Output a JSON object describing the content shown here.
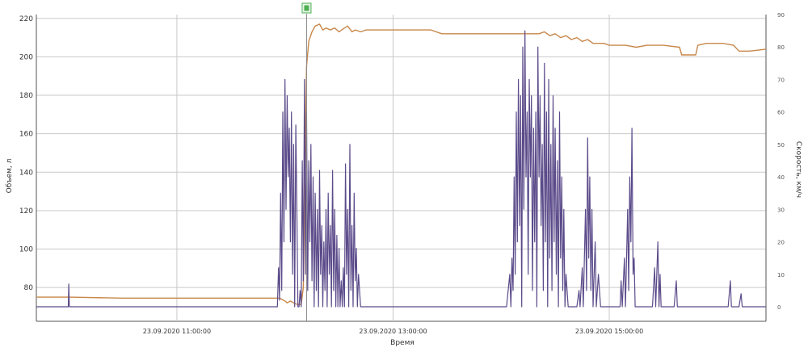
{
  "chart_data": {
    "type": "line",
    "xlabel": "Время",
    "ylabel_left": "Объем, л",
    "ylabel_right": "Скорость, км/ч",
    "x_ticks": [
      {
        "label": "23.09.2020 11:00:00",
        "hour": 11.0
      },
      {
        "label": "23.09.2020 13:00:00",
        "hour": 13.0
      },
      {
        "label": "23.09.2020 15:00:00",
        "hour": 15.0
      }
    ],
    "x_range_hours": [
      9.7,
      16.45
    ],
    "y_left": {
      "min": 70,
      "max": 222,
      "ticks": [
        80,
        100,
        120,
        140,
        160,
        180,
        200,
        220
      ]
    },
    "y_right": {
      "min": 0,
      "max": 90,
      "ticks": [
        0,
        10,
        20,
        30,
        40,
        50,
        60,
        70,
        80,
        90
      ]
    },
    "gridlines": true,
    "marker": {
      "name": "refuel-marker",
      "hour": 12.2,
      "color": "#4caf50"
    },
    "colors": {
      "volume": "#c8874a",
      "speed": "#5b4b8a",
      "grid": "#c9c9c9",
      "axis": "#555555"
    },
    "series": [
      {
        "axis": "left",
        "points": [
          [
            9.7,
            75
          ],
          [
            10.0,
            75
          ],
          [
            10.5,
            74.5
          ],
          [
            11.0,
            74.5
          ],
          [
            11.5,
            74.5
          ],
          [
            11.95,
            74.5
          ],
          [
            12.0,
            73
          ],
          [
            12.02,
            72
          ],
          [
            12.05,
            73
          ],
          [
            12.08,
            72
          ],
          [
            12.1,
            71.5
          ],
          [
            12.13,
            71
          ],
          [
            12.15,
            71.5
          ],
          [
            12.17,
            80
          ],
          [
            12.18,
            120
          ],
          [
            12.19,
            160
          ],
          [
            12.2,
            195
          ],
          [
            12.22,
            208
          ],
          [
            12.25,
            213
          ],
          [
            12.28,
            216
          ],
          [
            12.32,
            217
          ],
          [
            12.35,
            214
          ],
          [
            12.38,
            215
          ],
          [
            12.42,
            214
          ],
          [
            12.46,
            215
          ],
          [
            12.5,
            213
          ],
          [
            12.55,
            215
          ],
          [
            12.58,
            216
          ],
          [
            12.62,
            213
          ],
          [
            12.65,
            214
          ],
          [
            12.7,
            213
          ],
          [
            12.75,
            214
          ],
          [
            12.8,
            214
          ],
          [
            12.9,
            214
          ],
          [
            13.0,
            214
          ],
          [
            13.2,
            214
          ],
          [
            13.35,
            214
          ],
          [
            13.45,
            212
          ],
          [
            13.8,
            212
          ],
          [
            14.2,
            212
          ],
          [
            14.35,
            212
          ],
          [
            14.4,
            213
          ],
          [
            14.45,
            211
          ],
          [
            14.5,
            212
          ],
          [
            14.55,
            210
          ],
          [
            14.6,
            211
          ],
          [
            14.65,
            209
          ],
          [
            14.7,
            210
          ],
          [
            14.75,
            208
          ],
          [
            14.8,
            209
          ],
          [
            14.85,
            207
          ],
          [
            14.95,
            207
          ],
          [
            15.0,
            206
          ],
          [
            15.15,
            206
          ],
          [
            15.25,
            205
          ],
          [
            15.35,
            206
          ],
          [
            15.5,
            206
          ],
          [
            15.65,
            205
          ],
          [
            15.67,
            201
          ],
          [
            15.8,
            201
          ],
          [
            15.82,
            206
          ],
          [
            15.9,
            207
          ],
          [
            16.05,
            207
          ],
          [
            16.15,
            206
          ],
          [
            16.2,
            203
          ],
          [
            16.3,
            203
          ],
          [
            16.45,
            204
          ],
          [
            16.6,
            204
          ],
          [
            16.8,
            204
          ],
          [
            16.95,
            205
          ],
          [
            17.1,
            205
          ],
          [
            17.2,
            206
          ],
          [
            17.4,
            206
          ]
        ]
      },
      {
        "axis": "right",
        "points": [
          [
            9.7,
            0
          ],
          [
            9.995,
            0
          ],
          [
            10.0,
            7
          ],
          [
            10.005,
            0
          ],
          [
            11.7,
            0
          ],
          [
            11.9,
            0
          ],
          [
            11.93,
            0
          ],
          [
            11.94,
            12
          ],
          [
            11.95,
            2
          ],
          [
            11.96,
            35
          ],
          [
            11.97,
            5
          ],
          [
            11.98,
            60
          ],
          [
            11.99,
            20
          ],
          [
            12.0,
            70
          ],
          [
            12.01,
            30
          ],
          [
            12.02,
            65
          ],
          [
            12.03,
            40
          ],
          [
            12.04,
            55
          ],
          [
            12.05,
            20
          ],
          [
            12.06,
            60
          ],
          [
            12.07,
            10
          ],
          [
            12.08,
            50
          ],
          [
            12.09,
            0
          ],
          [
            12.1,
            56
          ],
          [
            12.11,
            30
          ],
          [
            12.12,
            0
          ],
          [
            12.13,
            0
          ],
          [
            12.14,
            5
          ],
          [
            12.15,
            0
          ],
          [
            12.16,
            45
          ],
          [
            12.17,
            8
          ],
          [
            12.18,
            70
          ],
          [
            12.19,
            10
          ],
          [
            12.2,
            60
          ],
          [
            12.21,
            5
          ],
          [
            12.22,
            45
          ],
          [
            12.23,
            20
          ],
          [
            12.24,
            50
          ],
          [
            12.25,
            8
          ],
          [
            12.26,
            40
          ],
          [
            12.27,
            0
          ],
          [
            12.28,
            35
          ],
          [
            12.29,
            5
          ],
          [
            12.3,
            30
          ],
          [
            12.31,
            0
          ],
          [
            12.32,
            42
          ],
          [
            12.33,
            10
          ],
          [
            12.34,
            25
          ],
          [
            12.35,
            0
          ],
          [
            12.36,
            20
          ],
          [
            12.37,
            5
          ],
          [
            12.38,
            30
          ],
          [
            12.39,
            0
          ],
          [
            12.4,
            35
          ],
          [
            12.41,
            10
          ],
          [
            12.42,
            25
          ],
          [
            12.43,
            0
          ],
          [
            12.44,
            42
          ],
          [
            12.45,
            5
          ],
          [
            12.46,
            30
          ],
          [
            12.47,
            0
          ],
          [
            12.48,
            22
          ],
          [
            12.49,
            0
          ],
          [
            12.5,
            18
          ],
          [
            12.51,
            0
          ],
          [
            12.52,
            8
          ],
          [
            12.53,
            0
          ],
          [
            12.54,
            12
          ],
          [
            12.55,
            0
          ],
          [
            12.56,
            44
          ],
          [
            12.57,
            10
          ],
          [
            12.58,
            30
          ],
          [
            12.59,
            0
          ],
          [
            12.6,
            50
          ],
          [
            12.61,
            5
          ],
          [
            12.62,
            25
          ],
          [
            12.63,
            0
          ],
          [
            12.64,
            35
          ],
          [
            12.65,
            8
          ],
          [
            12.66,
            18
          ],
          [
            12.67,
            0
          ],
          [
            12.68,
            10
          ],
          [
            12.7,
            0
          ],
          [
            13.5,
            0
          ],
          [
            14.05,
            0
          ],
          [
            14.08,
            10
          ],
          [
            14.09,
            0
          ],
          [
            14.1,
            15
          ],
          [
            14.11,
            5
          ],
          [
            14.12,
            40
          ],
          [
            14.13,
            10
          ],
          [
            14.14,
            60
          ],
          [
            14.15,
            20
          ],
          [
            14.16,
            70
          ],
          [
            14.17,
            25
          ],
          [
            14.18,
            65
          ],
          [
            14.19,
            0
          ],
          [
            14.2,
            80
          ],
          [
            14.21,
            30
          ],
          [
            14.22,
            85
          ],
          [
            14.23,
            40
          ],
          [
            14.24,
            60
          ],
          [
            14.25,
            10
          ],
          [
            14.26,
            70
          ],
          [
            14.27,
            40
          ],
          [
            14.28,
            65
          ],
          [
            14.29,
            5
          ],
          [
            14.3,
            55
          ],
          [
            14.31,
            20
          ],
          [
            14.32,
            60
          ],
          [
            14.33,
            0
          ],
          [
            14.34,
            80
          ],
          [
            14.35,
            40
          ],
          [
            14.36,
            65
          ],
          [
            14.37,
            25
          ],
          [
            14.38,
            50
          ],
          [
            14.39,
            5
          ],
          [
            14.4,
            75
          ],
          [
            14.41,
            20
          ],
          [
            14.42,
            60
          ],
          [
            14.43,
            0
          ],
          [
            14.44,
            70
          ],
          [
            14.45,
            15
          ],
          [
            14.46,
            50
          ],
          [
            14.47,
            5
          ],
          [
            14.48,
            65
          ],
          [
            14.49,
            20
          ],
          [
            14.5,
            55
          ],
          [
            14.51,
            10
          ],
          [
            14.52,
            45
          ],
          [
            14.53,
            0
          ],
          [
            14.54,
            60
          ],
          [
            14.55,
            15
          ],
          [
            14.56,
            40
          ],
          [
            14.57,
            5
          ],
          [
            14.58,
            30
          ],
          [
            14.59,
            0
          ],
          [
            14.6,
            10
          ],
          [
            14.62,
            0
          ],
          [
            14.7,
            0
          ],
          [
            14.72,
            5
          ],
          [
            14.73,
            0
          ],
          [
            14.75,
            12
          ],
          [
            14.76,
            0
          ],
          [
            14.78,
            30
          ],
          [
            14.79,
            5
          ],
          [
            14.8,
            52
          ],
          [
            14.81,
            15
          ],
          [
            14.82,
            40
          ],
          [
            14.83,
            5
          ],
          [
            14.84,
            30
          ],
          [
            14.85,
            0
          ],
          [
            14.87,
            20
          ],
          [
            14.88,
            0
          ],
          [
            14.9,
            10
          ],
          [
            14.92,
            0
          ],
          [
            15.05,
            0
          ],
          [
            15.1,
            0
          ],
          [
            15.11,
            8
          ],
          [
            15.12,
            0
          ],
          [
            15.14,
            15
          ],
          [
            15.15,
            0
          ],
          [
            15.17,
            30
          ],
          [
            15.18,
            5
          ],
          [
            15.19,
            40
          ],
          [
            15.2,
            20
          ],
          [
            15.21,
            55
          ],
          [
            15.22,
            10
          ],
          [
            15.23,
            15
          ],
          [
            15.24,
            0
          ],
          [
            15.3,
            0
          ],
          [
            15.4,
            0
          ],
          [
            15.42,
            12
          ],
          [
            15.43,
            0
          ],
          [
            15.45,
            20
          ],
          [
            15.46,
            0
          ],
          [
            15.47,
            10
          ],
          [
            15.48,
            0
          ],
          [
            15.55,
            0
          ],
          [
            15.6,
            0
          ],
          [
            15.62,
            8
          ],
          [
            15.63,
            0
          ],
          [
            16.1,
            0
          ],
          [
            16.12,
            8
          ],
          [
            16.13,
            0
          ],
          [
            16.2,
            0
          ],
          [
            16.22,
            4
          ],
          [
            16.23,
            0
          ],
          [
            16.45,
            0
          ]
        ]
      }
    ]
  }
}
